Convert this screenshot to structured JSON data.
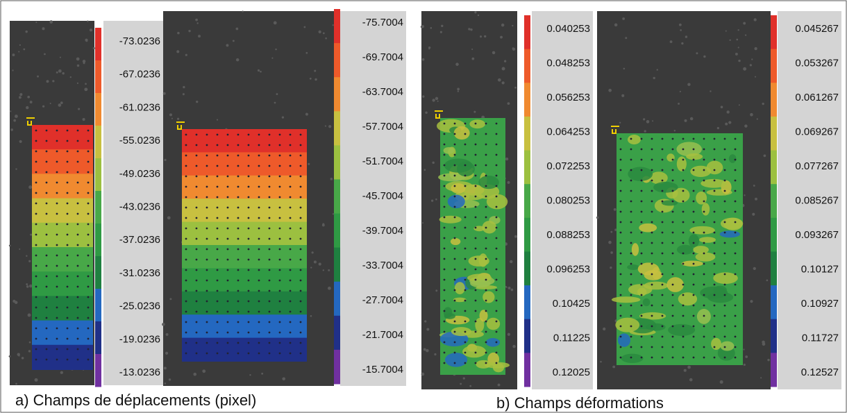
{
  "panels": [
    {
      "scale": [
        "-73.0236",
        "-67.0236",
        "-61.0236",
        "-55.0236",
        "-49.0236",
        "-43.0236",
        "-37.0236",
        "-31.0236",
        "-25.0236",
        "-19.0236",
        "-13.0236"
      ]
    },
    {
      "scale": [
        "-75.7004",
        "-69.7004",
        "-63.7004",
        "-57.7004",
        "-51.7004",
        "-45.7004",
        "-39.7004",
        "-33.7004",
        "-27.7004",
        "-21.7004",
        "-15.7004"
      ]
    },
    {
      "scale": [
        "0.040253",
        "0.048253",
        "0.056253",
        "0.064253",
        "0.072253",
        "0.080253",
        "0.088253",
        "0.096253",
        "0.10425",
        "0.11225",
        "0.12025"
      ]
    },
    {
      "scale": [
        "0.045267",
        "0.053267",
        "0.061267",
        "0.069267",
        "0.077267",
        "0.085267",
        "0.093267",
        "0.10127",
        "0.10927",
        "0.11727",
        "0.12527"
      ]
    }
  ],
  "captions": [
    "a) Champs de déplacements (pixel)",
    "b) Champs déformations"
  ]
}
